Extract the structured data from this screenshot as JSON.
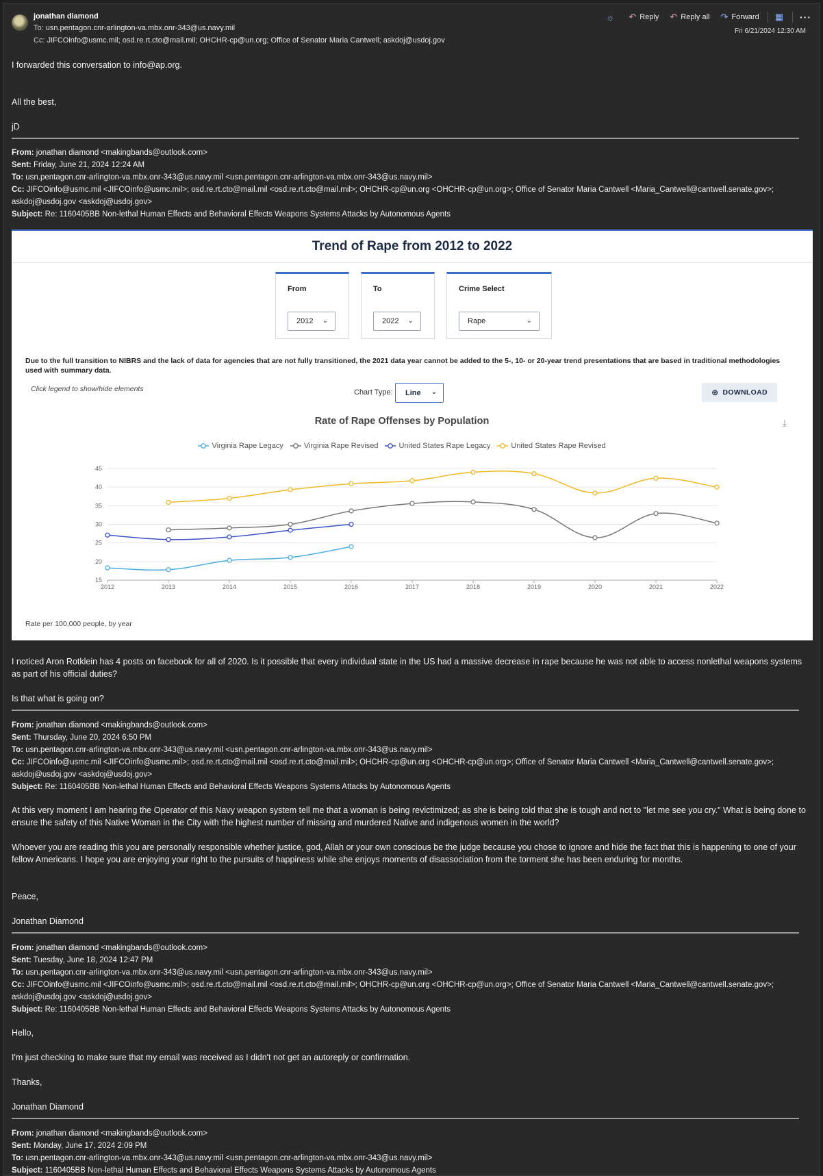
{
  "email": {
    "sender": "jonathan diamond",
    "to_label": "To:",
    "to": "usn.pentagon.cnr-arlington-va.mbx.onr-343@us.navy.mil",
    "cc_label": "Cc:",
    "cc": "JIFCOinfo@usmc.mil;  osd.re.rt.cto@mail.mil;  OHCHR-cp@un.org;  Office of Senator Maria Cantwell;  askdoj@usdoj.gov",
    "date": "Fri 6/21/2024 12:30 AM",
    "actions": {
      "reply": "Reply",
      "reply_all": "Reply all",
      "forward": "Forward"
    },
    "icons": {
      "sun": "sun-icon",
      "reply": "reply-icon",
      "reply_all": "reply-all-icon",
      "forward": "forward-icon",
      "grid": "calendar-grid-icon",
      "more": "more-icon"
    }
  },
  "intro": {
    "line1": "I forwarded this conversation to info@ap.org.",
    "line2": "All the best,",
    "line3": "jD"
  },
  "msg1": {
    "from_l": "From:",
    "from": " jonathan diamond <makingbands@outlook.com>",
    "sent_l": "Sent:",
    "sent": " Friday, June 21, 2024 12:24 AM",
    "to_l": "To:",
    "to": " usn.pentagon.cnr-arlington-va.mbx.onr-343@us.navy.mil <usn.pentagon.cnr-arlington-va.mbx.onr-343@us.navy.mil>",
    "cc_l": "Cc:",
    "cc": " JIFCOinfo@usmc.mil <JIFCOinfo@usmc.mil>; osd.re.rt.cto@mail.mil <osd.re.rt.cto@mail.mil>; OHCHR-cp@un.org <OHCHR-cp@un.org>; Office of Senator Maria Cantwell <Maria_Cantwell@cantwell.senate.gov>;",
    "cc2": "askdoj@usdoj.gov <askdoj@usdoj.gov>",
    "subj_l": "Subject:",
    "subj": " Re: 1160405BB Non-lethal Human Effects and Behavioral Effects Weapons Systems Attacks by Autonomous Agents"
  },
  "panel": {
    "title": "Trend of Rape from 2012 to 2022",
    "from_label": "From",
    "from_value": "2012",
    "to_label": "To",
    "to_value": "2022",
    "crime_label": "Crime Select",
    "crime_value": "Rape",
    "note": "Due to the full transition to NIBRS and the lack of data for agencies that are not fully transitioned, the 2021 data year cannot be added to the 5-, 10- or 20-year trend presentations that are based in traditional methodologies used with summary data.",
    "hint": "Click legend to show/hide elements",
    "chart_type_label": "Chart Type:",
    "chart_type_value": "Line",
    "download": "DOWNLOAD",
    "footnote": "Rate per 100,000 people, by year"
  },
  "chart_data": {
    "type": "line",
    "title": "Rate of Rape Offenses by Population",
    "x": [
      2012,
      2013,
      2014,
      2015,
      2016,
      2017,
      2018,
      2019,
      2020,
      2021,
      2022
    ],
    "ylim": [
      15,
      45
    ],
    "yticks": [
      15,
      20,
      25,
      30,
      35,
      40,
      45
    ],
    "grid": true,
    "legend_position": "top",
    "series": [
      {
        "name": "Virginia Rape Legacy",
        "color": "#4aaee0",
        "values": [
          18.3,
          17.8,
          20.3,
          21.1,
          24.0,
          null,
          null,
          null,
          null,
          null,
          null
        ]
      },
      {
        "name": "Virginia Rape Revised",
        "color": "#777777",
        "values": [
          null,
          28.5,
          29.0,
          30.0,
          33.6,
          35.6,
          36.0,
          34.0,
          26.4,
          32.9,
          30.3
        ]
      },
      {
        "name": "United States Rape Legacy",
        "color": "#3a50c9",
        "values": [
          27.1,
          25.9,
          26.6,
          28.4,
          30.0,
          null,
          null,
          null,
          null,
          null,
          null
        ]
      },
      {
        "name": "United States Rape Revised",
        "color": "#f2b823",
        "values": [
          null,
          35.9,
          37.0,
          39.3,
          40.9,
          41.7,
          44.0,
          43.6,
          38.4,
          42.4,
          40.0
        ]
      }
    ]
  },
  "after_chart": {
    "p1": "I noticed Aron Rotklein has 4 posts on facebook for all of 2020.  Is it possible that every individual state in the US had a massive decrease in rape because he was not able to access nonlethal weapons systems as part of his official duties?",
    "p2": "Is that what is going on?"
  },
  "msg2": {
    "from_l": "From:",
    "from": " jonathan diamond <makingbands@outlook.com>",
    "sent_l": "Sent:",
    "sent": " Thursday, June 20, 2024 6:50 PM",
    "to_l": "To:",
    "to": " usn.pentagon.cnr-arlington-va.mbx.onr-343@us.navy.mil <usn.pentagon.cnr-arlington-va.mbx.onr-343@us.navy.mil>",
    "cc_l": "Cc:",
    "cc": " JIFCOinfo@usmc.mil <JIFCOinfo@usmc.mil>; osd.re.rt.cto@mail.mil <osd.re.rt.cto@mail.mil>; OHCHR-cp@un.org <OHCHR-cp@un.org>; Office of Senator Maria Cantwell <Maria_Cantwell@cantwell.senate.gov>;",
    "cc2": "askdoj@usdoj.gov <askdoj@usdoj.gov>",
    "subj_l": "Subject:",
    "subj": " Re: 1160405BB Non-lethal Human Effects and Behavioral Effects Weapons Systems Attacks by Autonomous Agents",
    "p1": "At this very moment I am hearing the Operator of this Navy weapon system tell me that a woman is being revictimized; as she is being told that she is tough and not to \"let me see you cry.\" What is being done to ensure the safety of this Native Woman in the City with the highest number of missing and murdered Native and indigenous women in the world?",
    "p2": "Whoever you are reading this you are personally responsible whether justice, god, Allah or your own conscious be the judge because you chose to ignore and hide the fact that this is happening to one of your fellow Americans.  I hope you are enjoying your right to the pursuits of happiness while she enjoys moments of disassociation from the torment she has been enduring for months.",
    "p3": "Peace,",
    "p4": "Jonathan Diamond"
  },
  "msg3": {
    "from_l": "From:",
    "from": " jonathan diamond <makingbands@outlook.com>",
    "sent_l": "Sent:",
    "sent": " Tuesday, June 18, 2024 12:47 PM",
    "to_l": "To:",
    "to": " usn.pentagon.cnr-arlington-va.mbx.onr-343@us.navy.mil <usn.pentagon.cnr-arlington-va.mbx.onr-343@us.navy.mil>",
    "cc_l": "Cc:",
    "cc": " JIFCOinfo@usmc.mil <JIFCOinfo@usmc.mil>; osd.re.rt.cto@mail.mil <osd.re.rt.cto@mail.mil>; OHCHR-cp@un.org <OHCHR-cp@un.org>; Office of Senator Maria Cantwell <Maria_Cantwell@cantwell.senate.gov>;",
    "cc2": "askdoj@usdoj.gov <askdoj@usdoj.gov>",
    "subj_l": "Subject:",
    "subj": " Re: 1160405BB Non-lethal Human Effects and Behavioral Effects Weapons Systems Attacks by Autonomous Agents",
    "p1": "Hello,",
    "p2": "I'm just checking to make sure that my email was received as I didn't not get an autoreply or confirmation.",
    "p3": "Thanks,",
    "p4": "Jonathan Diamond"
  },
  "msg4": {
    "from_l": "From:",
    "from": " jonathan diamond <makingbands@outlook.com>",
    "sent_l": "Sent:",
    "sent": " Monday, June 17, 2024 2:09 PM",
    "to_l": "To:",
    "to": " usn.pentagon.cnr-arlington-va.mbx.onr-343@us.navy.mil <usn.pentagon.cnr-arlington-va.mbx.onr-343@us.navy.mil>",
    "subj_l": "Subject:",
    "subj": " 1160405BB Non-lethal Human Effects and Behavioral Effects Weapons Systems Attacks by Autonomous Agents"
  }
}
